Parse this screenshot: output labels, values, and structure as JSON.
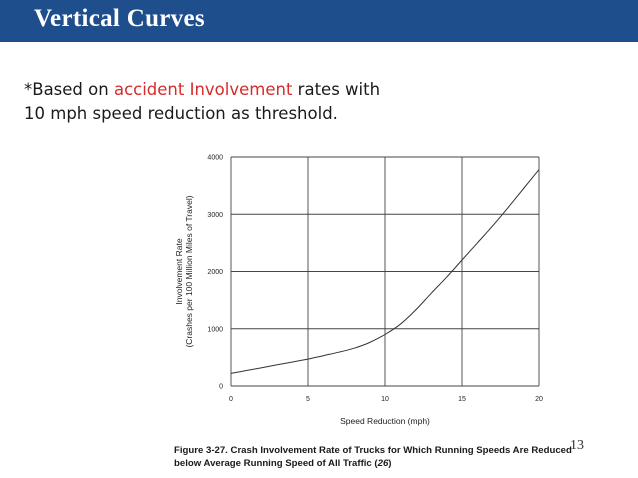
{
  "slide": {
    "title": "Vertical Curves",
    "note": {
      "prefix": "*Based on ",
      "highlight": "accident Involvement",
      "suffix": " rates with",
      "line2": "10 mph speed reduction as threshold."
    },
    "caption": {
      "main": "Figure 3-27. Crash Involvement Rate of Trucks for Which Running Speeds Are Reduced below Average Running Speed of All Traffic (",
      "ref": "26",
      "end": ")"
    },
    "page_number": "13",
    "colors": {
      "title_bar": "#1f4e8c",
      "highlight": "#d62b2b"
    }
  },
  "chart_data": {
    "type": "line",
    "xlabel": "Speed Reduction (mph)",
    "ylabel_line1": "Involvement Rate",
    "ylabel_line2": "(Crashes per 100 Million Miles of Travel)",
    "xlim": [
      0,
      20
    ],
    "ylim": [
      0,
      4000
    ],
    "x_ticks": [
      "0",
      "5",
      "10",
      "15",
      "20"
    ],
    "y_ticks": [
      "0",
      "1000",
      "2000",
      "3000",
      "4000"
    ],
    "grid": true,
    "series": [
      {
        "x": [
          0,
          1,
          2,
          3,
          4,
          5,
          6,
          7,
          8,
          9,
          10,
          11,
          12,
          13,
          14,
          15,
          16,
          17,
          18,
          19,
          20
        ],
        "values": [
          220,
          270,
          320,
          370,
          420,
          470,
          530,
          590,
          660,
          760,
          900,
          1080,
          1330,
          1620,
          1900,
          2200,
          2500,
          2800,
          3120,
          3450,
          3780
        ]
      }
    ]
  }
}
